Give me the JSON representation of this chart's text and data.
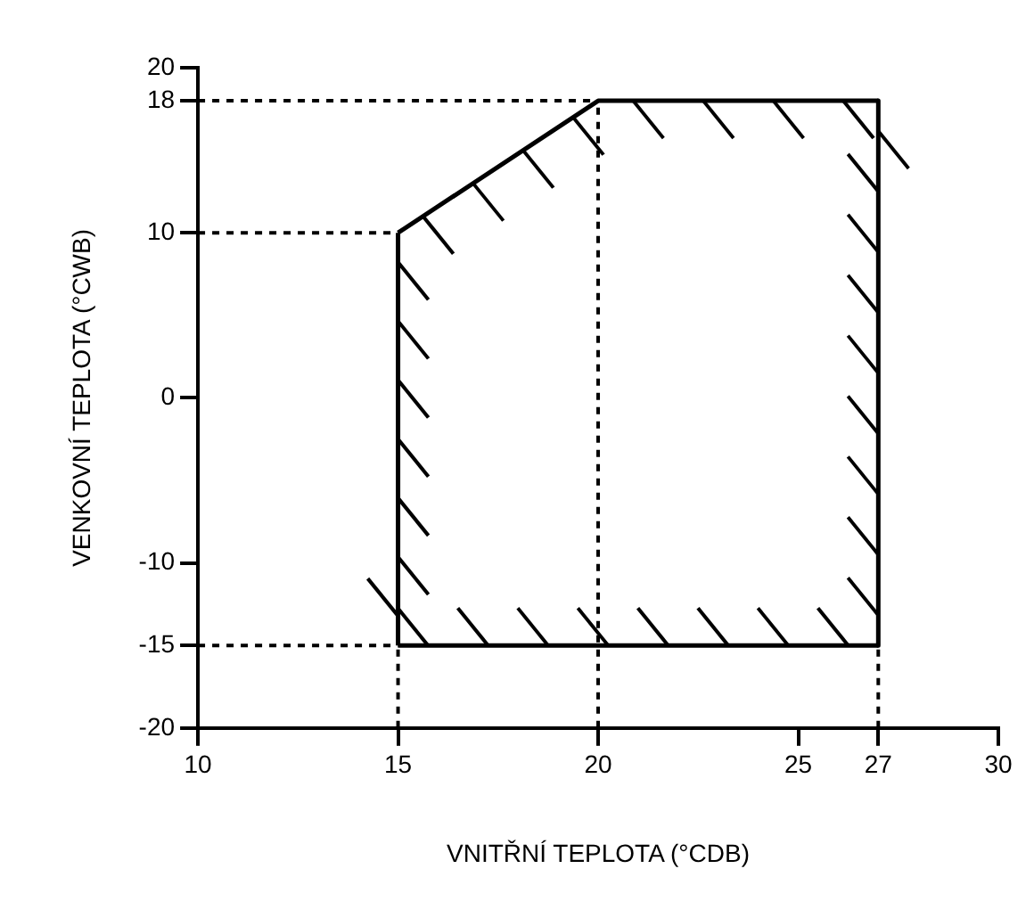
{
  "chart_data": {
    "type": "line",
    "xlabel": "VNITŘNÍ TEPLOTA (°CDB)",
    "ylabel": "VENKOVNÍ TEPLOTA (°CWB)",
    "series": [
      {
        "color": "#000000",
        "line_style": "solid",
        "x": [
          15,
          20,
          27
        ],
        "values": [
          10,
          18,
          18
        ]
      },
      {
        "color": "#000000",
        "line_style": "solid",
        "x": [
          27,
          27
        ],
        "values": [
          18,
          -15
        ]
      },
      {
        "color": "#000000",
        "line_style": "solid",
        "x": [
          15,
          27
        ],
        "values": [
          -15,
          -15
        ]
      },
      {
        "color": "#000000",
        "line_style": "solid",
        "x": [
          15,
          15
        ],
        "values": [
          -15,
          10
        ]
      },
      {
        "color": "#000000",
        "line_style": "dotted",
        "x": [
          10,
          20
        ],
        "values": [
          18,
          18
        ]
      },
      {
        "color": "#000000",
        "line_style": "dotted",
        "x": [
          10,
          15
        ],
        "values": [
          10,
          10
        ]
      },
      {
        "color": "#000000",
        "line_style": "dotted",
        "x": [
          10,
          15
        ],
        "values": [
          -15,
          -15
        ]
      },
      {
        "color": "#000000",
        "line_style": "dotted",
        "x": [
          15,
          15
        ],
        "values": [
          -20,
          -15
        ]
      },
      {
        "color": "#000000",
        "line_style": "dotted",
        "x": [
          20,
          20
        ],
        "values": [
          -20,
          18
        ]
      },
      {
        "color": "#000000",
        "line_style": "dotted",
        "x": [
          27,
          27
        ],
        "values": [
          -20,
          -15
        ]
      }
    ],
    "xlim": [
      10,
      30
    ],
    "ylim": [
      -20,
      20
    ],
    "xticks": [
      10,
      15,
      20,
      25,
      27,
      30
    ],
    "yticks": [
      -20,
      -15,
      -10,
      0,
      10,
      18,
      20
    ],
    "grid": false,
    "legend": false,
    "marker": "none"
  }
}
